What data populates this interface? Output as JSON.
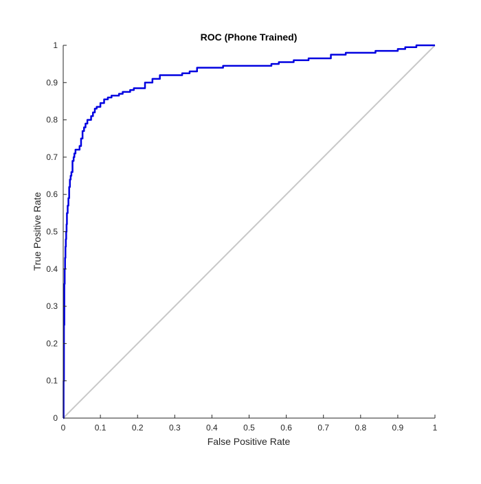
{
  "chart_data": {
    "type": "line",
    "title": "ROC (Phone Trained)",
    "xlabel": "False Positive Rate",
    "ylabel": "True Positive Rate",
    "xlim": [
      0,
      1
    ],
    "ylim": [
      0,
      1
    ],
    "xticks": [
      0,
      0.1,
      0.2,
      0.3,
      0.4,
      0.5,
      0.6,
      0.7,
      0.8,
      0.9,
      1
    ],
    "xtick_labels": [
      "0",
      "0.1",
      "0.2",
      "0.3",
      "0.4",
      "0.5",
      "0.6",
      "0.7",
      "0.8",
      "0.9",
      "1"
    ],
    "yticks": [
      0,
      0.1,
      0.2,
      0.3,
      0.4,
      0.5,
      0.6,
      0.7,
      0.8,
      0.9,
      1
    ],
    "ytick_labels": [
      "0",
      "0.1",
      "0.2",
      "0.3",
      "0.4",
      "0.5",
      "0.6",
      "0.7",
      "0.8",
      "0.9",
      "1"
    ],
    "grid": false,
    "box": "left-bottom",
    "series": [
      {
        "color": "#0000e0",
        "step": true,
        "x": [
          0,
          0.001,
          0.002,
          0.003,
          0.004,
          0.005,
          0.006,
          0.007,
          0.008,
          0.009,
          0.01,
          0.012,
          0.014,
          0.016,
          0.018,
          0.02,
          0.022,
          0.025,
          0.028,
          0.03,
          0.033,
          0.036,
          0.04,
          0.044,
          0.048,
          0.052,
          0.056,
          0.06,
          0.065,
          0.07,
          0.075,
          0.08,
          0.085,
          0.09,
          0.095,
          0.1,
          0.11,
          0.12,
          0.13,
          0.14,
          0.15,
          0.16,
          0.17,
          0.18,
          0.19,
          0.2,
          0.22,
          0.24,
          0.26,
          0.3,
          0.32,
          0.34,
          0.36,
          0.4,
          0.43,
          0.5,
          0.56,
          0.58,
          0.62,
          0.66,
          0.72,
          0.76,
          0.8,
          0.84,
          0.9,
          0.92,
          0.95,
          0.97,
          1
        ],
        "y": [
          0,
          0.1,
          0.25,
          0.36,
          0.4,
          0.43,
          0.46,
          0.48,
          0.5,
          0.52,
          0.55,
          0.57,
          0.59,
          0.62,
          0.64,
          0.65,
          0.66,
          0.69,
          0.7,
          0.71,
          0.72,
          0.72,
          0.72,
          0.73,
          0.75,
          0.77,
          0.78,
          0.79,
          0.8,
          0.8,
          0.81,
          0.82,
          0.83,
          0.835,
          0.835,
          0.845,
          0.855,
          0.86,
          0.865,
          0.865,
          0.87,
          0.875,
          0.875,
          0.88,
          0.885,
          0.885,
          0.9,
          0.91,
          0.92,
          0.92,
          0.925,
          0.93,
          0.94,
          0.94,
          0.945,
          0.945,
          0.95,
          0.955,
          0.96,
          0.965,
          0.975,
          0.98,
          0.98,
          0.985,
          0.99,
          0.995,
          1.0,
          1.0,
          1.0
        ]
      },
      {
        "color": "#c8c8c8",
        "x": [
          0,
          1
        ],
        "y": [
          0,
          1
        ]
      }
    ]
  }
}
